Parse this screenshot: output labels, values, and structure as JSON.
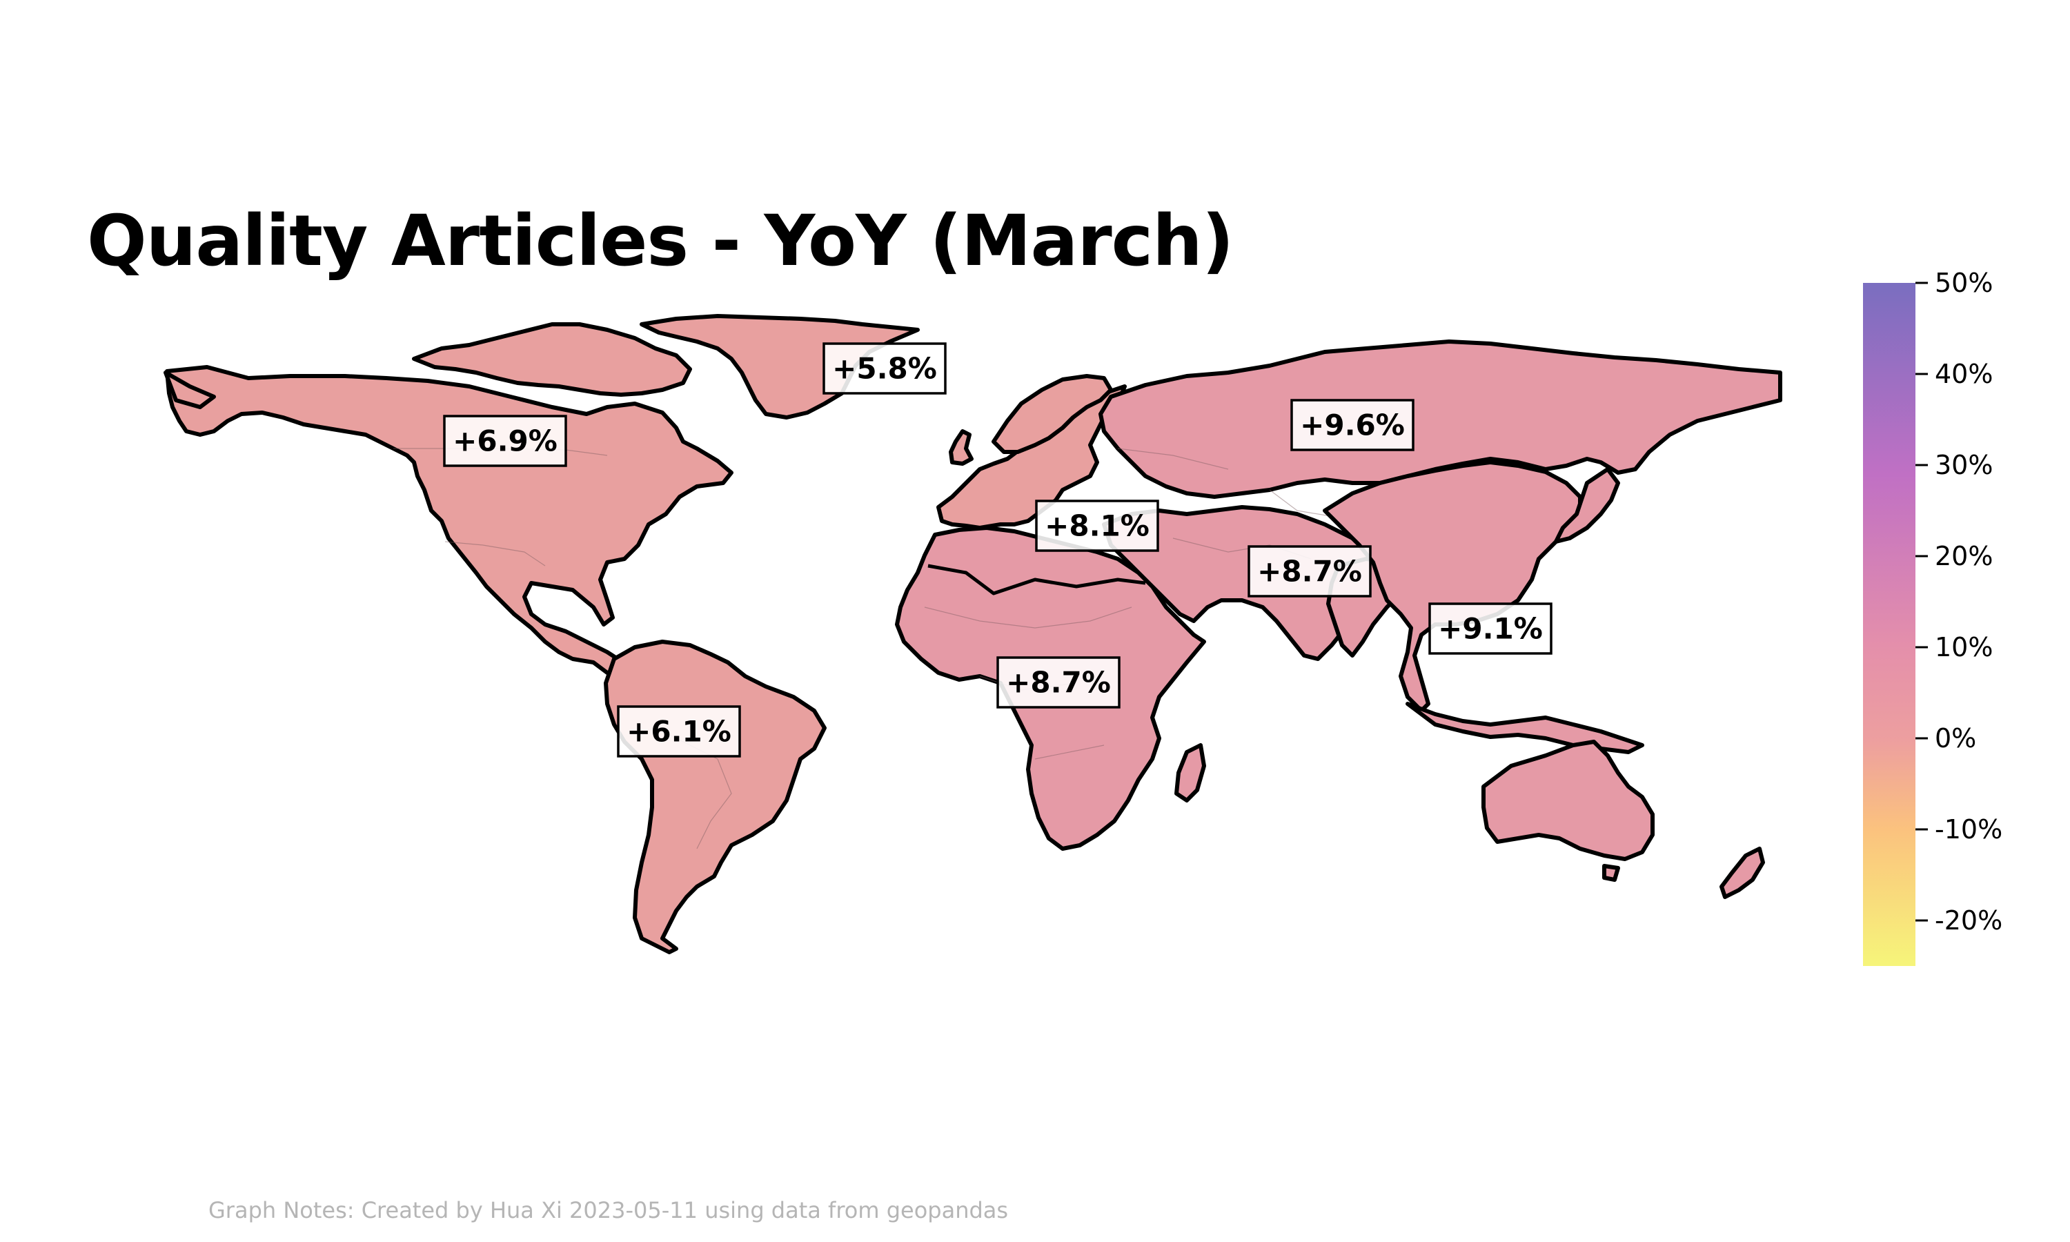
{
  "title": "Quality Articles - YoY (March)",
  "notes": "Graph Notes: Created by Hua Xi 2023-05-11 using data from geopandas",
  "colors": {
    "land_fill": "#e59aa6",
    "land_fill_alt": "#e8a09f",
    "border": "#000000",
    "colorbar_stops": [
      "#f6f57a",
      "#fbc27e",
      "#ed9f9f",
      "#e48fab",
      "#c070c4",
      "#7a6ec0"
    ]
  },
  "colorbar": {
    "min": -25,
    "max": 50,
    "ticks": [
      {
        "value": 50,
        "label": "50%"
      },
      {
        "value": 40,
        "label": "40%"
      },
      {
        "value": 30,
        "label": "30%"
      },
      {
        "value": 20,
        "label": "20%"
      },
      {
        "value": 10,
        "label": "10%"
      },
      {
        "value": 0,
        "label": "0%"
      },
      {
        "value": -10,
        "label": "-10%"
      },
      {
        "value": -20,
        "label": "-20%"
      }
    ]
  },
  "regions": [
    {
      "name": "North America",
      "value": 6.9,
      "label": "+6.9%"
    },
    {
      "name": "Greenland",
      "value": 5.8,
      "label": "+5.8%"
    },
    {
      "name": "South America",
      "value": 6.1,
      "label": "+6.1%"
    },
    {
      "name": "Europe",
      "value": 8.1,
      "label": "+8.1%"
    },
    {
      "name": "Africa",
      "value": 8.7,
      "label": "+8.7%"
    },
    {
      "name": "Russia",
      "value": 9.6,
      "label": "+9.6%"
    },
    {
      "name": "South Asia",
      "value": 8.7,
      "label": "+8.7%"
    },
    {
      "name": "East Asia & Pacific",
      "value": 9.1,
      "label": "+9.1%"
    }
  ]
}
